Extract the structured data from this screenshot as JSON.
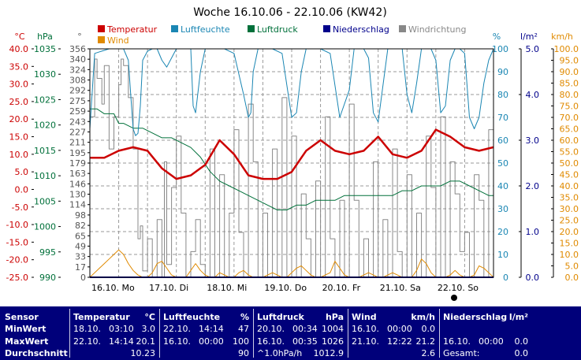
{
  "chart_data": {
    "type": "line",
    "title": "Woche 16.10.06 - 22.10.06 (KW42)",
    "legend": [
      {
        "name": "Temperatur",
        "color": "#cc0000"
      },
      {
        "name": "Luftfeuchte",
        "color": "#1a86b3"
      },
      {
        "name": "Luftdruck",
        "color": "#00703a"
      },
      {
        "name": "Niederschlag",
        "color": "#00008b"
      },
      {
        "name": "Windrichtung",
        "color": "#888888"
      },
      {
        "name": "Wind",
        "color": "#e08a00"
      }
    ],
    "axes": {
      "temp": {
        "unit": "°C",
        "color": "#cc0000",
        "ticks": [
          "40.0",
          "35.0",
          "30.0",
          "25.0",
          "20.0",
          "15.0",
          "10.0",
          "5.0",
          "0.0",
          "-5.0",
          "-10.0",
          "-15.0",
          "-20.0",
          "-25.0"
        ]
      },
      "pressure": {
        "unit": "hPa",
        "color": "#00703a",
        "ticks": [
          "1035",
          "1030",
          "1025",
          "1020",
          "1015",
          "1010",
          "1005",
          "1000",
          "995",
          "990"
        ]
      },
      "direction": {
        "unit": "°",
        "color": "#555555",
        "ticks": [
          "356",
          "340",
          "324",
          "308",
          "292",
          "275",
          "259",
          "243",
          "227",
          "211",
          "195",
          "179",
          "163",
          "146",
          "130",
          "114",
          "98",
          "82",
          "65",
          "49",
          "33",
          "17",
          "0"
        ]
      },
      "humidity": {
        "unit": "%",
        "color": "#1a86b3",
        "ticks": [
          "100",
          "90",
          "80",
          "70",
          "60",
          "50",
          "40",
          "30",
          "20",
          "10",
          "0"
        ]
      },
      "rain": {
        "unit": "l/m²",
        "color": "#00008b",
        "ticks": [
          "5.0",
          "4.0",
          "3.0",
          "2.0",
          "1.0",
          "0.0"
        ]
      },
      "wind": {
        "unit": "km/h",
        "color": "#e08a00",
        "ticks": [
          "100.0",
          "95.0",
          "90.0",
          "85.0",
          "80.0",
          "75.0",
          "70.0",
          "65.0",
          "60.0",
          "55.0",
          "50.0",
          "45.0",
          "40.0",
          "35.0",
          "30.0",
          "25.0",
          "20.0",
          "15.0",
          "10.0",
          "5.0",
          "0.0"
        ]
      }
    },
    "day_labels": [
      "16.10. Mo",
      "17.10. Di",
      "18.10. Mi",
      "19.10. Do",
      "20.10. Fr",
      "21.10. Sa",
      "22.10. So"
    ],
    "series": [
      {
        "name": "Temperatur",
        "axis": "temp",
        "x": [
          0,
          6,
          12,
          18,
          24,
          30,
          36,
          42,
          48,
          54,
          60,
          66,
          72,
          78,
          84,
          90,
          96,
          102,
          108,
          114,
          120,
          126,
          132,
          138,
          144,
          150,
          156,
          162,
          168
        ],
        "values": [
          9,
          9,
          11,
          12,
          11,
          6,
          3,
          4,
          7,
          14,
          10,
          4,
          3,
          3,
          5,
          11,
          14,
          11,
          10,
          11,
          15,
          10,
          9,
          11,
          17,
          15,
          12,
          11,
          12
        ]
      },
      {
        "name": "Luftfeuchte",
        "axis": "humidity",
        "x": [
          0,
          2,
          5,
          8,
          10,
          12,
          14,
          16,
          17,
          18,
          19,
          20,
          21,
          22,
          24,
          26,
          28,
          30,
          32,
          34,
          36,
          40,
          42,
          43,
          44,
          46,
          48,
          52,
          56,
          60,
          64,
          66,
          67,
          68,
          70,
          72,
          76,
          80,
          84,
          86,
          88,
          90,
          92,
          96,
          100,
          104,
          108,
          110,
          112,
          114,
          116,
          118,
          120,
          124,
          126,
          128,
          130,
          132,
          134,
          136,
          138,
          140,
          142,
          144,
          146,
          148,
          150,
          152,
          154,
          156,
          158,
          160,
          162,
          164,
          166,
          168
        ],
        "values": [
          65,
          98,
          99,
          100,
          100,
          100,
          100,
          95,
          80,
          65,
          62,
          63,
          75,
          95,
          99,
          100,
          100,
          95,
          92,
          96,
          100,
          100,
          100,
          75,
          72,
          90,
          100,
          100,
          100,
          98,
          80,
          70,
          72,
          90,
          100,
          100,
          100,
          98,
          70,
          72,
          90,
          100,
          100,
          100,
          98,
          70,
          82,
          100,
          100,
          100,
          96,
          72,
          68,
          100,
          100,
          100,
          100,
          80,
          72,
          85,
          100,
          100,
          100,
          95,
          72,
          75,
          95,
          100,
          100,
          98,
          70,
          65,
          70,
          85,
          95,
          100
        ]
      },
      {
        "name": "Luftdruck",
        "axis": "pressure",
        "x": [
          0,
          3,
          6,
          8,
          10,
          12,
          14,
          18,
          22,
          26,
          30,
          34,
          38,
          42,
          46,
          50,
          54,
          58,
          62,
          66,
          70,
          74,
          78,
          82,
          86,
          90,
          94,
          98,
          102,
          106,
          110,
          114,
          118,
          122,
          126,
          130,
          134,
          138,
          142,
          146,
          150,
          154,
          158,
          162,
          166,
          168
        ],
        "values": [
          1025,
          1025,
          1024,
          1024,
          1024,
          1022,
          1022,
          1021,
          1021,
          1020,
          1019,
          1019,
          1018,
          1017,
          1015,
          1012,
          1010,
          1009,
          1008,
          1007,
          1006,
          1005,
          1004,
          1004,
          1005,
          1005,
          1006,
          1006,
          1006,
          1007,
          1007,
          1007,
          1007,
          1007,
          1007,
          1008,
          1008,
          1009,
          1009,
          1009,
          1010,
          1010,
          1009,
          1008,
          1007,
          1007
        ]
      },
      {
        "name": "Windrichtung",
        "axis": "direction",
        "style": "step",
        "x": [
          0,
          2,
          3,
          5,
          6,
          8,
          10,
          12,
          13,
          14,
          16,
          18,
          20,
          21,
          22,
          24,
          26,
          28,
          30,
          31,
          32,
          34,
          36,
          38,
          40,
          42,
          44,
          46,
          48,
          50,
          52,
          54,
          56,
          58,
          60,
          62,
          64,
          66,
          68,
          70,
          72,
          74,
          76,
          78,
          80,
          82,
          84,
          86,
          88,
          90,
          92,
          94,
          96,
          98,
          100,
          102,
          104,
          106,
          108,
          110,
          112,
          114,
          116,
          118,
          120,
          122,
          124,
          126,
          128,
          130,
          132,
          134,
          136,
          138,
          140,
          142,
          144,
          146,
          148,
          150,
          152,
          154,
          156,
          158,
          160,
          162,
          164,
          166,
          168
        ],
        "values": [
          250,
          340,
          310,
          270,
          330,
          200,
          250,
          300,
          340,
          330,
          280,
          200,
          60,
          80,
          10,
          60,
          0,
          90,
          0,
          180,
          20,
          140,
          220,
          100,
          0,
          40,
          90,
          20,
          0,
          200,
          0,
          160,
          0,
          100,
          230,
          70,
          0,
          270,
          180,
          0,
          100,
          0,
          200,
          0,
          280,
          0,
          220,
          0,
          130,
          60,
          0,
          150,
          0,
          250,
          60,
          0,
          120,
          0,
          270,
          120,
          0,
          60,
          0,
          180,
          0,
          90,
          0,
          200,
          40,
          0,
          160,
          0,
          100,
          0,
          220,
          140,
          0,
          250,
          0,
          180,
          130,
          40,
          70,
          0,
          160,
          120,
          0,
          230,
          190
        ]
      },
      {
        "name": "Wind",
        "axis": "wind",
        "x": [
          0,
          2,
          4,
          6,
          8,
          10,
          12,
          14,
          16,
          18,
          20,
          22,
          24,
          26,
          28,
          30,
          32,
          34,
          36,
          38,
          40,
          42,
          44,
          46,
          48,
          50,
          52,
          54,
          56,
          58,
          60,
          62,
          64,
          66,
          68,
          70,
          72,
          74,
          76,
          78,
          80,
          82,
          84,
          86,
          88,
          90,
          92,
          94,
          96,
          98,
          100,
          102,
          104,
          106,
          108,
          110,
          112,
          114,
          116,
          118,
          120,
          122,
          124,
          126,
          128,
          130,
          132,
          134,
          136,
          138,
          140,
          142,
          144,
          146,
          148,
          150,
          152,
          154,
          156,
          158,
          160,
          162,
          164,
          166,
          168
        ],
        "values": [
          0,
          2,
          4,
          6,
          8,
          10,
          12,
          10,
          6,
          3,
          1,
          0,
          0,
          2,
          6,
          7,
          4,
          1,
          0,
          0,
          0,
          3,
          6,
          3,
          1,
          0,
          0,
          2,
          1,
          0,
          0,
          2,
          3,
          1,
          0,
          0,
          0,
          1,
          2,
          1,
          0,
          0,
          2,
          4,
          5,
          3,
          1,
          0,
          0,
          1,
          2,
          7,
          4,
          1,
          0,
          0,
          0,
          1,
          2,
          1,
          0,
          0,
          1,
          2,
          1,
          0,
          0,
          0,
          3,
          8,
          6,
          2,
          0,
          0,
          0,
          1,
          3,
          1,
          0,
          0,
          1,
          5,
          4,
          2,
          0
        ]
      },
      {
        "name": "Niederschlag",
        "axis": "rain",
        "x": [
          0,
          168
        ],
        "values": [
          0,
          0
        ]
      }
    ],
    "grid": true,
    "marker": "●"
  },
  "table": {
    "row_labels": [
      "Sensor",
      "MinWert",
      "MaxWert",
      "Durchschnitt"
    ],
    "groups": [
      {
        "name": "Temperatur",
        "unit": "°C",
        "rows": [
          [
            "18.10.",
            "03:10",
            "3.0"
          ],
          [
            "22.10.",
            "14:14",
            "20.1"
          ],
          [
            "",
            "",
            "10.23"
          ]
        ]
      },
      {
        "name": "Luftfeuchte",
        "unit": "%",
        "rows": [
          [
            "22.10.",
            "14:14",
            "47"
          ],
          [
            "16.10.",
            "00:00",
            "100"
          ],
          [
            "",
            "",
            "90"
          ]
        ]
      },
      {
        "name": "Luftdruck",
        "unit": "hPa",
        "rows": [
          [
            "20.10.",
            "00:34",
            "1004"
          ],
          [
            "16.10.",
            "00:35",
            "1026"
          ],
          [
            "^1.0hPa/h",
            "",
            "1012.9"
          ]
        ]
      },
      {
        "name": "Wind",
        "unit": "km/h",
        "rows": [
          [
            "16.10.",
            "00:00",
            "0.0"
          ],
          [
            "21.10.",
            "12:22",
            "21.2"
          ],
          [
            "",
            "",
            "2.6"
          ]
        ]
      },
      {
        "name": "Niederschlag",
        "unit": "l/m²",
        "rows": [
          [
            "",
            "",
            " "
          ],
          [
            "16.10.",
            "00:00",
            "0.0"
          ],
          [
            "Gesamt:",
            "",
            "0.0"
          ]
        ]
      }
    ]
  }
}
